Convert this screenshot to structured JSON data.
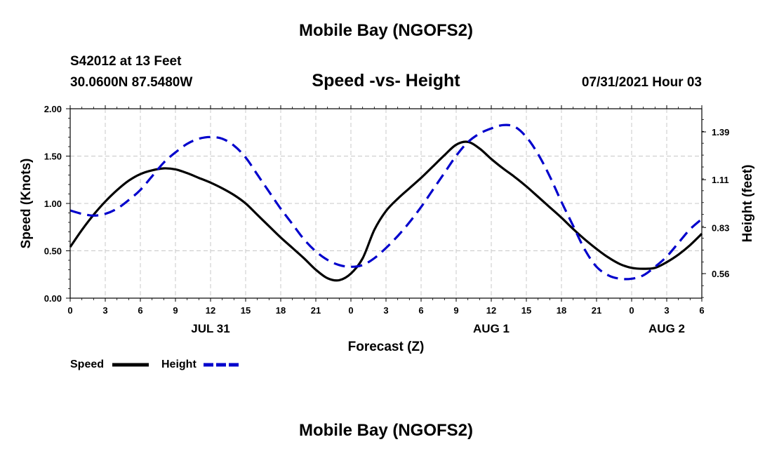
{
  "header": {
    "top_title": "Mobile Bay (NGOFS2)",
    "station": "S42012 at 13 Feet",
    "coords": "30.0600N  87.5480W",
    "date": "07/31/2021 Hour 03",
    "bottom_title": "Mobile Bay (NGOFS2)"
  },
  "chart_data": {
    "type": "line",
    "title": "Speed -vs- Height",
    "xlabel": "Forecast (Z)",
    "ylabel": "Speed (Knots)",
    "y2label": "Height (feet)",
    "x_unit": "hours from 07/31/2021 00Z",
    "xlim": [
      0,
      54
    ],
    "x_ticks": [
      0,
      3,
      6,
      9,
      12,
      15,
      18,
      21,
      24,
      27,
      30,
      33,
      36,
      39,
      42,
      45,
      48,
      51,
      54
    ],
    "x_tick_labels": [
      "0",
      "3",
      "6",
      "9",
      "12",
      "15",
      "18",
      "21",
      "0",
      "3",
      "6",
      "9",
      "12",
      "15",
      "18",
      "21",
      "0",
      "3",
      "6"
    ],
    "date_labels": [
      {
        "x": 12,
        "label": "JUL 31"
      },
      {
        "x": 36,
        "label": "AUG 1"
      },
      {
        "x": 51,
        "label": "AUG 2"
      }
    ],
    "ylim": [
      0,
      2.0
    ],
    "y_ticks": [
      0.0,
      0.5,
      1.0,
      1.5,
      2.0
    ],
    "y_tick_labels": [
      "0.00",
      "0.50",
      "1.00",
      "1.50",
      "2.00"
    ],
    "y2_ticks": [
      0.56,
      0.83,
      1.11,
      1.39
    ],
    "y2_tick_labels": [
      "0.56",
      "0.83",
      "1.11",
      "1.39"
    ],
    "grid": true,
    "legend": "bottom-left",
    "series": [
      {
        "name": "Speed",
        "color": "#000000",
        "style": "solid",
        "axis": "left",
        "x": [
          0,
          1,
          2,
          3,
          4,
          5,
          6,
          7,
          8,
          9,
          10,
          11,
          12,
          13,
          14,
          15,
          16,
          17,
          18,
          19,
          20,
          21,
          22,
          23,
          24,
          25,
          26,
          27,
          28,
          29,
          30,
          31,
          32,
          33,
          34,
          35,
          36,
          37,
          38,
          39,
          40,
          41,
          42,
          43,
          44,
          45,
          46,
          47,
          48,
          49,
          50,
          51,
          52,
          53,
          54
        ],
        "values": [
          0.54,
          0.72,
          0.88,
          1.02,
          1.14,
          1.24,
          1.31,
          1.35,
          1.37,
          1.36,
          1.32,
          1.27,
          1.22,
          1.16,
          1.09,
          1.0,
          0.88,
          0.76,
          0.64,
          0.53,
          0.42,
          0.3,
          0.21,
          0.19,
          0.26,
          0.42,
          0.72,
          0.92,
          1.05,
          1.16,
          1.27,
          1.39,
          1.51,
          1.62,
          1.65,
          1.58,
          1.47,
          1.37,
          1.28,
          1.18,
          1.07,
          0.96,
          0.85,
          0.73,
          0.62,
          0.52,
          0.43,
          0.36,
          0.32,
          0.31,
          0.32,
          0.38,
          0.46,
          0.56,
          0.68
        ]
      },
      {
        "name": "Height",
        "color": "#0000cc",
        "style": "dashed",
        "axis": "right",
        "x": [
          0,
          1,
          2,
          3,
          4,
          5,
          6,
          7,
          8,
          9,
          10,
          11,
          12,
          13,
          14,
          15,
          16,
          17,
          18,
          19,
          20,
          21,
          22,
          23,
          24,
          25,
          26,
          27,
          28,
          29,
          30,
          31,
          32,
          33,
          34,
          35,
          36,
          37,
          38,
          39,
          40,
          41,
          42,
          43,
          44,
          45,
          46,
          47,
          48,
          49,
          50,
          51,
          52,
          53,
          54
        ],
        "values": [
          0.93,
          0.91,
          0.9,
          0.91,
          0.94,
          0.99,
          1.05,
          1.13,
          1.21,
          1.27,
          1.32,
          1.35,
          1.36,
          1.35,
          1.31,
          1.24,
          1.14,
          1.04,
          0.94,
          0.85,
          0.76,
          0.69,
          0.64,
          0.61,
          0.6,
          0.61,
          0.65,
          0.71,
          0.78,
          0.86,
          0.95,
          1.05,
          1.15,
          1.25,
          1.33,
          1.38,
          1.41,
          1.43,
          1.42,
          1.36,
          1.26,
          1.13,
          0.98,
          0.84,
          0.7,
          0.6,
          0.55,
          0.53,
          0.53,
          0.55,
          0.6,
          0.66,
          0.74,
          0.82,
          0.88
        ]
      }
    ]
  }
}
